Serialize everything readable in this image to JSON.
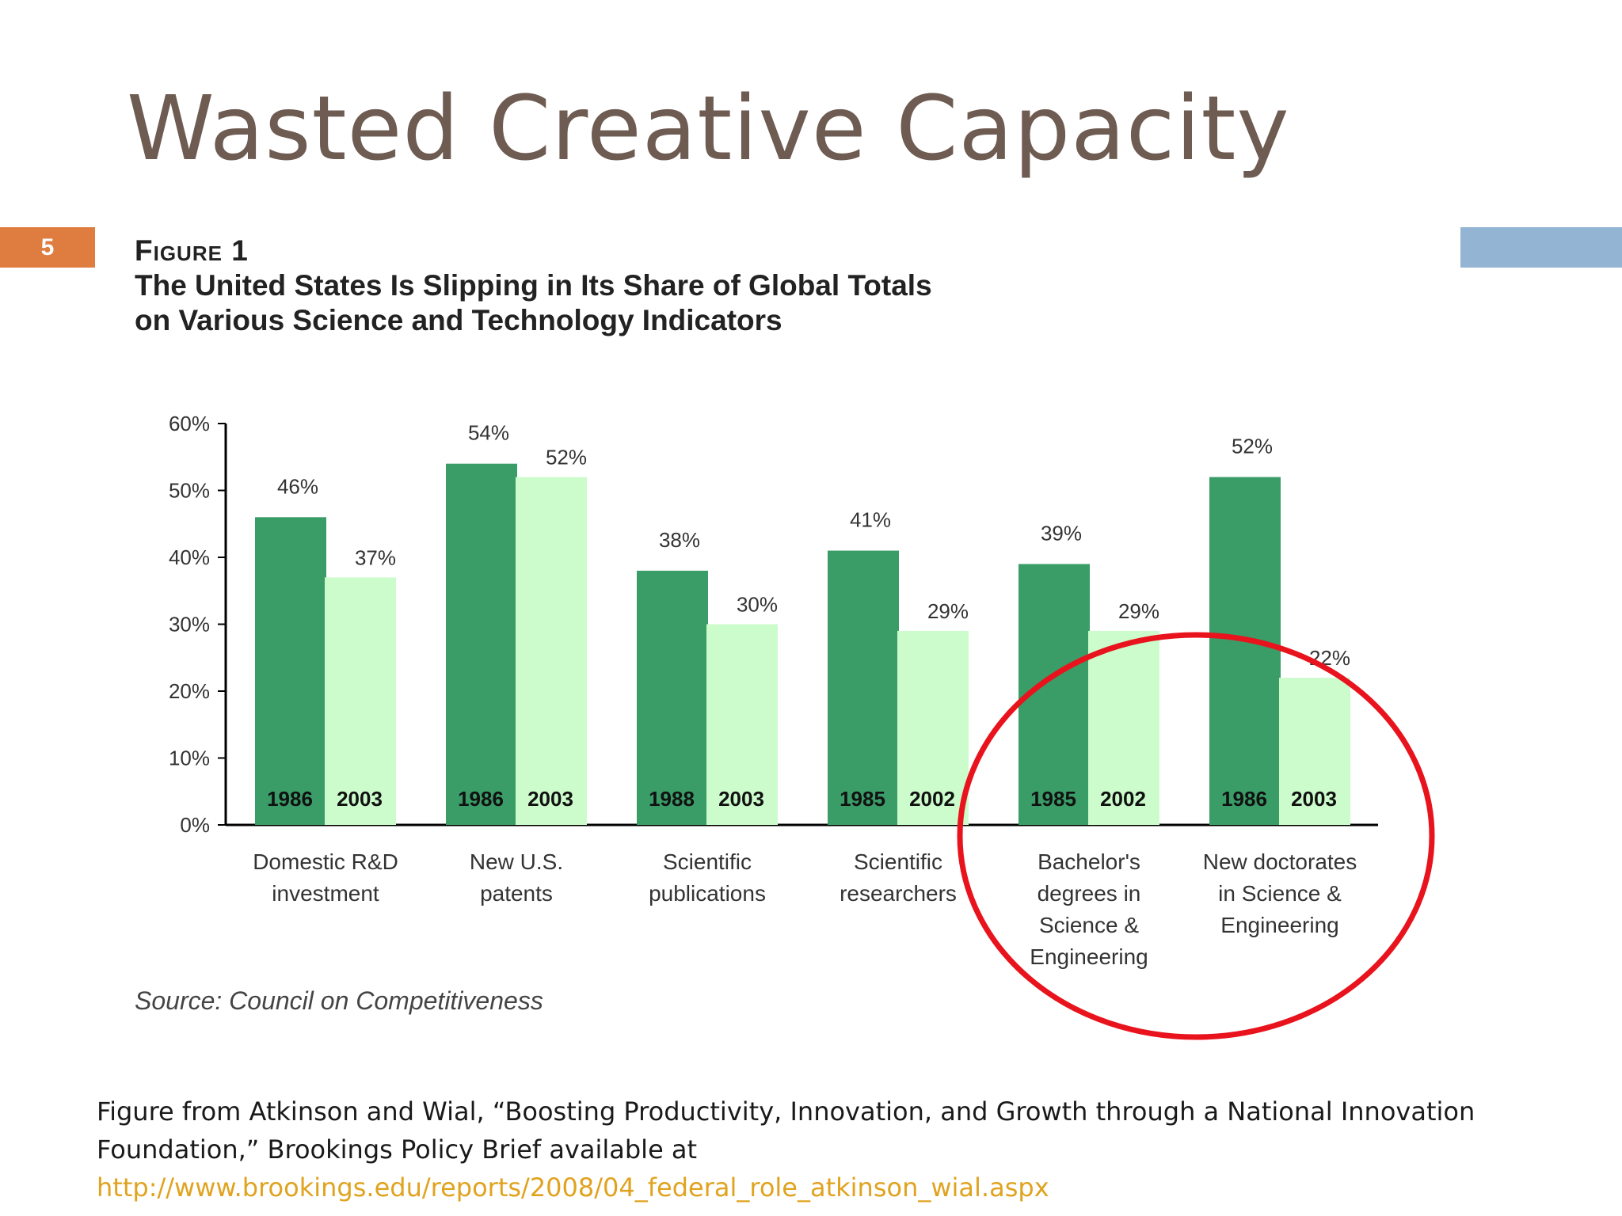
{
  "slide": {
    "title": "Wasted Creative Capacity",
    "number": "5"
  },
  "figure": {
    "label": "Figure 1",
    "title_line1": "The United States Is Slipping in Its Share of Global Totals",
    "title_line2": "on Various Science and Technology Indicators",
    "source": "Source: Council on Competitiveness"
  },
  "chart_data": {
    "type": "bar",
    "title": "The United States Is Slipping in Its Share of Global Totals on Various Science and Technology Indicators",
    "xlabel": "",
    "ylabel": "",
    "ylim": [
      0,
      60
    ],
    "yticks": [
      0,
      10,
      20,
      30,
      40,
      50,
      60
    ],
    "ytick_labels": [
      "0%",
      "10%",
      "20%",
      "30%",
      "40%",
      "50%",
      "60%"
    ],
    "grid": false,
    "legend": "none",
    "categories": [
      {
        "label_lines": [
          "Domestic R&D",
          "investment"
        ],
        "years": [
          "1986",
          "2003"
        ],
        "values": [
          46,
          37
        ],
        "value_labels": [
          "46%",
          "37%"
        ]
      },
      {
        "label_lines": [
          "New U.S.",
          "patents"
        ],
        "years": [
          "1986",
          "2003"
        ],
        "values": [
          54,
          52
        ],
        "value_labels": [
          "54%",
          "52%"
        ]
      },
      {
        "label_lines": [
          "Scientific",
          "publications"
        ],
        "years": [
          "1988",
          "2003"
        ],
        "values": [
          38,
          30
        ],
        "value_labels": [
          "38%",
          "30%"
        ]
      },
      {
        "label_lines": [
          "Scientific",
          "researchers"
        ],
        "years": [
          "1985",
          "2002"
        ],
        "values": [
          41,
          29
        ],
        "value_labels": [
          "41%",
          "29%"
        ]
      },
      {
        "label_lines": [
          "Bachelor's",
          "degrees in",
          "Science &",
          "Engineering"
        ],
        "years": [
          "1985",
          "2002"
        ],
        "values": [
          39,
          29
        ],
        "value_labels": [
          "39%",
          "29%"
        ]
      },
      {
        "label_lines": [
          "New doctorates",
          "in Science &",
          "Engineering"
        ],
        "years": [
          "1986",
          "2003"
        ],
        "values": [
          52,
          22
        ],
        "value_labels": [
          "52%",
          "22%"
        ]
      }
    ],
    "colors": {
      "earlier": "#3a9d68",
      "later": "#ccfccc",
      "highlight_circle": "#e8131c"
    }
  },
  "caption": {
    "text": "Figure from Atkinson and Wial, “Boosting Productivity, Innovation, and Growth through a National Innovation Foundation,” Brookings Policy Brief available at",
    "link": "http://www.brookings.edu/reports/2008/04_federal_role_atkinson_wial.aspx"
  }
}
